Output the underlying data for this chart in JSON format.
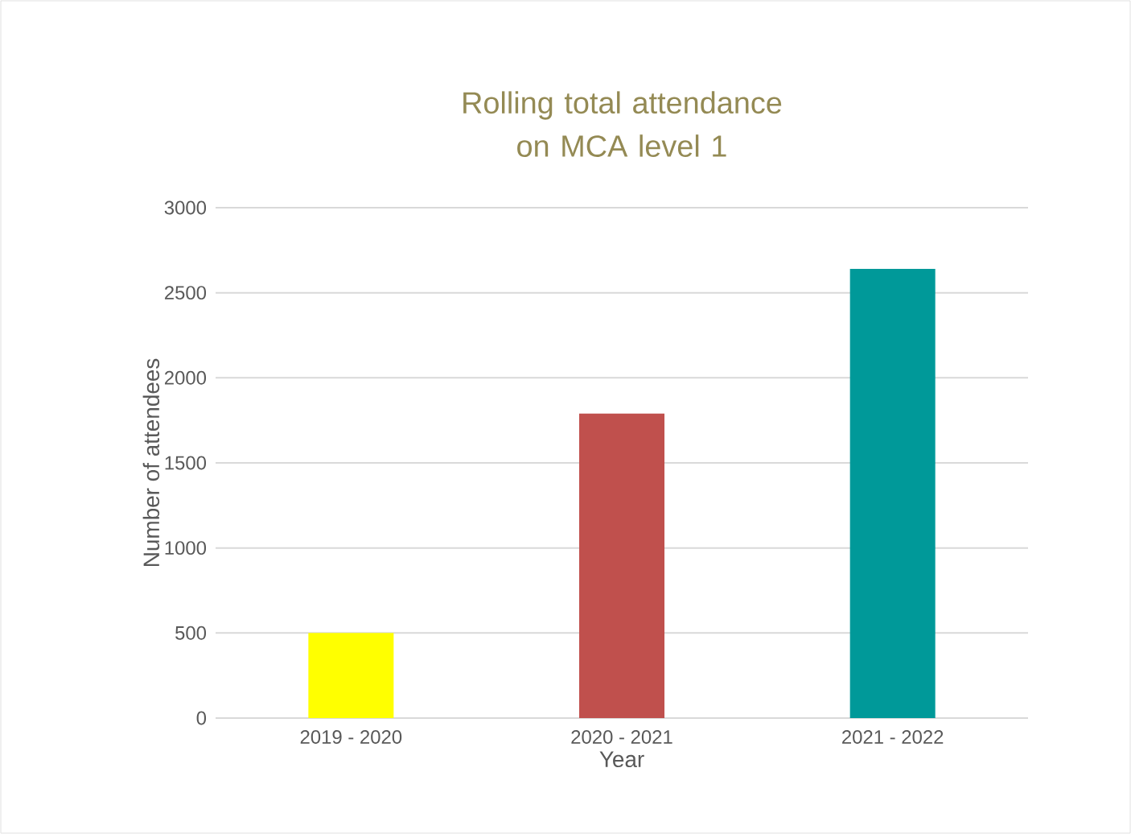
{
  "chart_data": {
    "type": "bar",
    "title": "Rolling total attendance on MCA level 1",
    "xlabel": "Year",
    "ylabel": "Number of attendees",
    "categories": [
      "2019 - 2020",
      "2020 - 2021",
      "2021 - 2022"
    ],
    "values": [
      500,
      1790,
      2640
    ],
    "colors": [
      "#ffff00",
      "#c0504d",
      "#009999"
    ],
    "ylim": [
      0,
      3000
    ],
    "yticks": [
      0,
      500,
      1000,
      1500,
      2000,
      2500,
      3000
    ],
    "grid": "y"
  }
}
